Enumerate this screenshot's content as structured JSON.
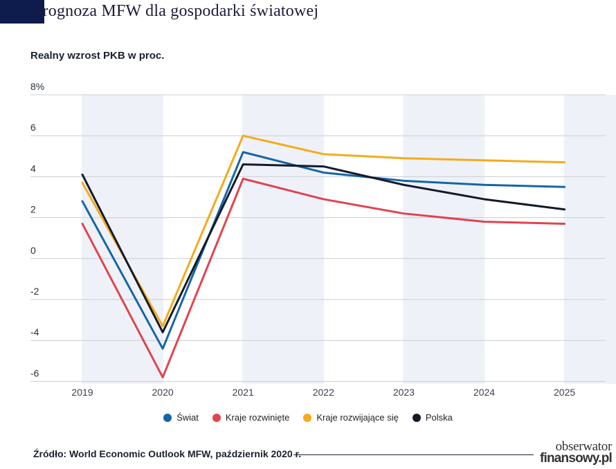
{
  "header": {
    "title": "Prognoza MFW dla gospodarki światowej"
  },
  "source_text": "Źródło: World Economic Outlook MFW, październik 2020 r.",
  "logo": {
    "line1": "obserwator",
    "line2": "finansowy.pl"
  },
  "chart_data": {
    "type": "line",
    "title": "Prognoza MFW dla gospodarki światowej",
    "subtitle": "Realny wzrost PKB w proc.",
    "x": [
      "2019",
      "2020",
      "2021",
      "2022",
      "2023",
      "2024",
      "2025"
    ],
    "y_ticks": [
      "8%",
      "6",
      "4",
      "2",
      "0",
      "-2",
      "-4",
      "-6"
    ],
    "ylim": [
      -6,
      8
    ],
    "grid": true,
    "legend_position": "bottom",
    "series": [
      {
        "name": "Świat",
        "color": "#1565a6",
        "values": [
          2.8,
          -4.4,
          5.2,
          4.2,
          3.8,
          3.6,
          3.5
        ]
      },
      {
        "name": "Kraje rozwinięte",
        "color": "#e1434f",
        "values": [
          1.7,
          -5.8,
          3.9,
          2.9,
          2.2,
          1.8,
          1.7
        ]
      },
      {
        "name": "Kraje rozwijające się",
        "color": "#f4ab1c",
        "values": [
          3.7,
          -3.3,
          6.0,
          5.1,
          4.9,
          4.8,
          4.7
        ]
      },
      {
        "name": "Polska",
        "color": "#141a2a",
        "values": [
          4.1,
          -3.6,
          4.6,
          4.5,
          3.6,
          2.9,
          2.4
        ]
      }
    ]
  }
}
